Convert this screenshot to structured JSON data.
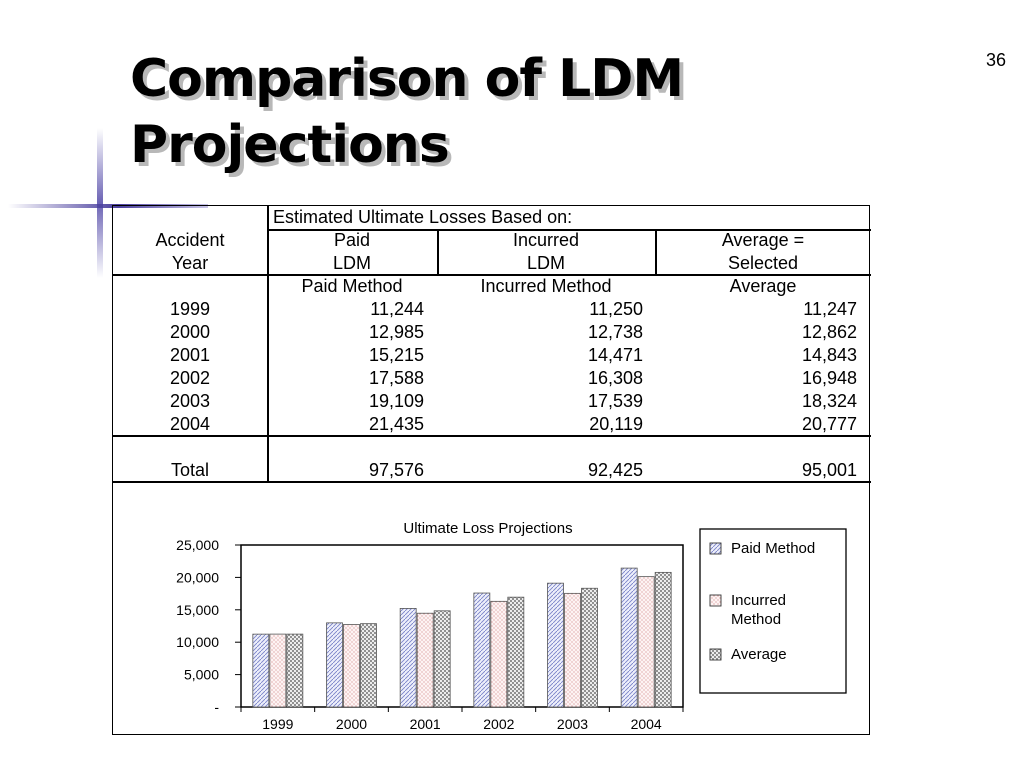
{
  "slide": {
    "title_line1": "Comparison of LDM",
    "title_line2": "Projections",
    "number": "36"
  },
  "table": {
    "group_header": "Estimated Ultimate Losses Based on:",
    "col1_header": [
      "Accident",
      "Year"
    ],
    "col2_header": [
      "Paid",
      "LDM"
    ],
    "col3_header": [
      "Incurred",
      "LDM"
    ],
    "col4_header": [
      "Average =",
      "Selected"
    ],
    "sub_headers": [
      "Paid Method",
      "Incurred Method",
      "Average"
    ],
    "rows": [
      {
        "year": "1999",
        "paid": "11,244",
        "incurred": "11,250",
        "average": "11,247"
      },
      {
        "year": "2000",
        "paid": "12,985",
        "incurred": "12,738",
        "average": "12,862"
      },
      {
        "year": "2001",
        "paid": "15,215",
        "incurred": "14,471",
        "average": "14,843"
      },
      {
        "year": "2002",
        "paid": "17,588",
        "incurred": "16,308",
        "average": "16,948"
      },
      {
        "year": "2003",
        "paid": "19,109",
        "incurred": "17,539",
        "average": "18,324"
      },
      {
        "year": "2004",
        "paid": "21,435",
        "incurred": "20,119",
        "average": "20,777"
      }
    ],
    "total": {
      "label": "Total",
      "paid": "97,576",
      "incurred": "92,425",
      "average": "95,001"
    }
  },
  "chart_data": {
    "type": "bar",
    "title": "Ultimate Loss Projections",
    "categories": [
      "1999",
      "2000",
      "2001",
      "2002",
      "2003",
      "2004"
    ],
    "series": [
      {
        "name": "Paid Method",
        "values": [
          11244,
          12985,
          15215,
          17588,
          19109,
          21435
        ]
      },
      {
        "name": "Incurred Method",
        "values": [
          11250,
          12738,
          14471,
          16308,
          17539,
          20119
        ]
      },
      {
        "name": "Average",
        "values": [
          11247,
          12862,
          14843,
          16948,
          18324,
          20777
        ]
      }
    ],
    "yticks": [
      "-",
      "5,000",
      "10,000",
      "15,000",
      "20,000",
      "25,000"
    ],
    "ylim": [
      0,
      25000
    ],
    "grid": false,
    "legend": "right",
    "legend_labels": [
      [
        "Paid Method"
      ],
      [
        "Incurred",
        "Method"
      ],
      [
        "Average"
      ]
    ]
  }
}
